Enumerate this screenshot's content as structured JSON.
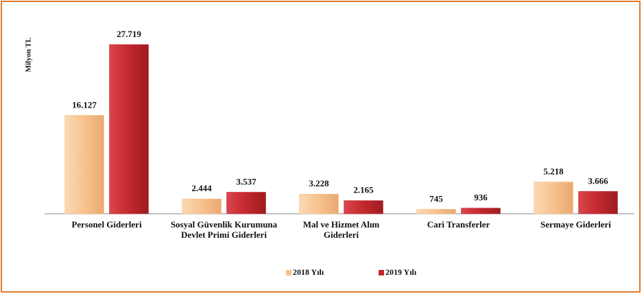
{
  "chart_data": {
    "type": "bar",
    "y_label": "Milyon TL",
    "categories": [
      "Personel Giderleri",
      "Sosyal Güvenlik Kurumuna Devlet Primi Giderleri",
      "Mal ve Hizmet Alım Giderleri",
      "Cari Transferler",
      "Sermaye Giderleri"
    ],
    "series": [
      {
        "name": "2018 Yılı",
        "color": "#f7c28f",
        "values": [
          16127,
          2444,
          3228,
          745,
          5218
        ],
        "value_labels": [
          "16.127",
          "2.444",
          "3.228",
          "745",
          "5.218"
        ]
      },
      {
        "name": "2019 Yılı",
        "color": "#c3282e",
        "values": [
          27719,
          3537,
          2165,
          936,
          3666
        ],
        "value_labels": [
          "27.719",
          "3.537",
          "2.165",
          "936",
          "3.666"
        ]
      }
    ]
  }
}
